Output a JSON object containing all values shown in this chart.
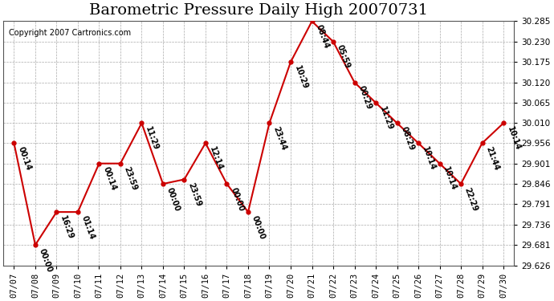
{
  "title": "Barometric Pressure Daily High 20070731",
  "copyright": "Copyright 2007 Cartronics.com",
  "dates": [
    "07/07",
    "07/08",
    "07/09",
    "07/10",
    "07/11",
    "07/12",
    "07/13",
    "07/14",
    "07/15",
    "07/16",
    "07/17",
    "07/18",
    "07/19",
    "07/20",
    "07/21",
    "07/22",
    "07/23",
    "07/24",
    "07/25",
    "07/26",
    "07/27",
    "07/28",
    "07/29",
    "07/30"
  ],
  "values": [
    29.956,
    29.681,
    29.77,
    29.77,
    29.901,
    29.901,
    30.01,
    29.846,
    29.858,
    29.956,
    29.846,
    29.77,
    30.01,
    30.175,
    30.285,
    30.23,
    30.12,
    30.065,
    30.01,
    29.956,
    29.901,
    29.846,
    29.956,
    30.01
  ],
  "time_labels": [
    "00:14",
    "00:00",
    "16:29",
    "01:14",
    "00:14",
    "23:59",
    "11:29",
    "00:00",
    "23:59",
    "12:14",
    "00:00",
    "00:00",
    "23:44",
    "10:29",
    "08:44",
    "05:59",
    "00:29",
    "11:29",
    "08:29",
    "10:14",
    "10:14",
    "22:29",
    "21:44",
    "10:14"
  ],
  "line_color": "#cc0000",
  "marker_color": "#cc0000",
  "bg_color": "#ffffff",
  "grid_color": "#aaaaaa",
  "ylim_min": 29.626,
  "ylim_max": 30.285,
  "yticks": [
    29.626,
    29.681,
    29.736,
    29.791,
    29.846,
    29.901,
    29.956,
    30.01,
    30.065,
    30.12,
    30.175,
    30.23,
    30.285
  ],
  "title_fontsize": 14,
  "label_fontsize": 7,
  "copyright_fontsize": 7,
  "tick_fontsize": 7.5
}
